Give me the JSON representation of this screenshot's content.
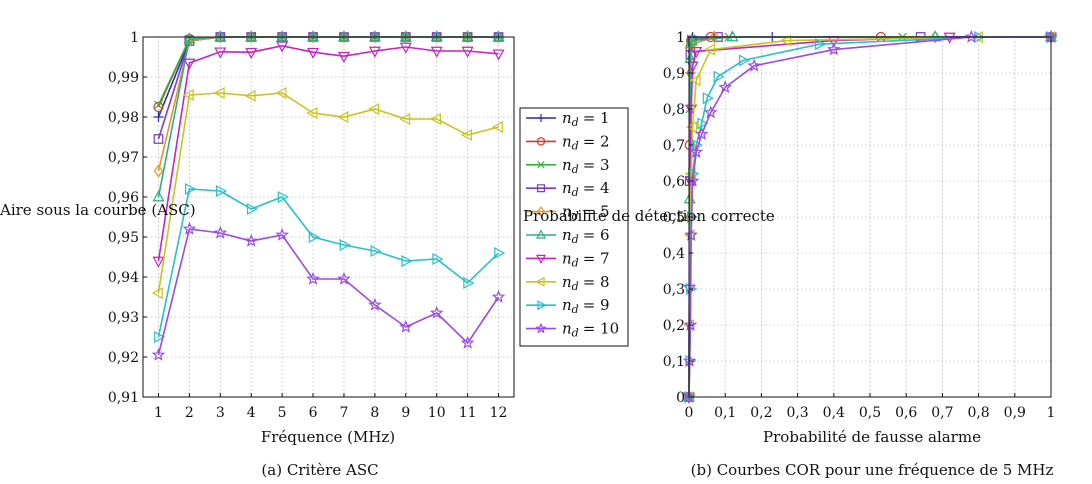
{
  "chart_data": [
    {
      "type": "line",
      "caption": "(a) Critère ASC",
      "xlabel": "Fréquence (MHz)",
      "ylabel": "Aire sous la courbe (ASC)",
      "xlim": [
        0.5,
        12.5
      ],
      "ylim": [
        0.91,
        1.0
      ],
      "x_ticks": [
        1,
        2,
        3,
        4,
        5,
        6,
        7,
        8,
        9,
        10,
        11,
        12
      ],
      "y_ticks": [
        0.91,
        0.92,
        0.93,
        0.94,
        0.95,
        0.96,
        0.97,
        0.98,
        0.99,
        1.0
      ],
      "y_tick_labels": [
        "0,91",
        "0,92",
        "0,93",
        "0,94",
        "0,95",
        "0,96",
        "0,97",
        "0,98",
        "0,99",
        "1"
      ],
      "grid": true,
      "legend": {
        "placement": "outside-right",
        "prefix": "n",
        "subscript": "d",
        "entries": [
          "= 1",
          "= 2",
          "= 3",
          "= 4",
          "= 5",
          "= 6",
          "= 7",
          "= 8",
          "= 9",
          "= 10"
        ]
      },
      "x": [
        1,
        2,
        3,
        4,
        5,
        6,
        7,
        8,
        9,
        10,
        11,
        12
      ],
      "series": [
        {
          "name": "n_d = 1",
          "color": "#2a2ac0",
          "marker": "plus",
          "values": [
            0.98,
            0.999,
            1.0,
            1.0,
            1.0,
            1.0,
            1.0,
            1.0,
            1.0,
            1.0,
            1.0,
            1.0
          ]
        },
        {
          "name": "n_d = 2",
          "color": "#d23b2c",
          "marker": "circle",
          "values": [
            0.9825,
            0.9995,
            1.0,
            1.0,
            1.0,
            1.0,
            1.0,
            1.0,
            1.0,
            1.0,
            1.0,
            1.0
          ]
        },
        {
          "name": "n_d = 3",
          "color": "#34b23c",
          "marker": "x",
          "values": [
            0.983,
            0.9995,
            1.0,
            1.0,
            1.0,
            1.0,
            1.0,
            1.0,
            1.0,
            1.0,
            1.0,
            1.0
          ]
        },
        {
          "name": "n_d = 4",
          "color": "#7a3cc8",
          "marker": "square",
          "values": [
            0.9745,
            0.999,
            1.0,
            1.0,
            1.0,
            1.0,
            1.0,
            1.0,
            1.0,
            1.0,
            1.0,
            1.0
          ]
        },
        {
          "name": "n_d = 5",
          "color": "#e0952c",
          "marker": "diamond",
          "values": [
            0.9665,
            0.999,
            1.0,
            1.0,
            1.0,
            1.0,
            1.0,
            1.0,
            1.0,
            1.0,
            1.0,
            1.0
          ]
        },
        {
          "name": "n_d = 6",
          "color": "#2fae86",
          "marker": "triangle-up",
          "values": [
            0.96,
            0.9995,
            1.0,
            1.0,
            1.0,
            1.0,
            1.0,
            1.0,
            1.0,
            1.0,
            1.0,
            1.0
          ]
        },
        {
          "name": "n_d = 7",
          "color": "#c424c4",
          "marker": "triangle-down",
          "values": [
            0.944,
            0.9935,
            0.9963,
            0.9962,
            0.9978,
            0.9962,
            0.9952,
            0.9965,
            0.9975,
            0.9965,
            0.9965,
            0.9958
          ]
        },
        {
          "name": "n_d = 8",
          "color": "#c8c41e",
          "marker": "triangle-left",
          "values": [
            0.936,
            0.9855,
            0.986,
            0.9853,
            0.986,
            0.981,
            0.98,
            0.982,
            0.9795,
            0.9795,
            0.9755,
            0.9775
          ]
        },
        {
          "name": "n_d = 9",
          "color": "#25c2c8",
          "marker": "triangle-right",
          "values": [
            0.925,
            0.962,
            0.9615,
            0.957,
            0.96,
            0.95,
            0.948,
            0.9465,
            0.944,
            0.9445,
            0.9385,
            0.946
          ]
        },
        {
          "name": "n_d = 10",
          "color": "#9a4ae6",
          "marker": "star",
          "values": [
            0.9205,
            0.952,
            0.951,
            0.949,
            0.9505,
            0.9395,
            0.9395,
            0.933,
            0.9275,
            0.931,
            0.9235,
            0.935
          ]
        }
      ]
    },
    {
      "type": "line",
      "caption": "(b) Courbes COR pour une fréquence de 5 MHz",
      "xlabel": "Probabilité de fausse alarme",
      "ylabel": "Probabilité de détection correcte",
      "xlim": [
        0,
        1
      ],
      "ylim": [
        0,
        1
      ],
      "x_ticks": [
        0,
        0.1,
        0.2,
        0.3,
        0.4,
        0.5,
        0.6,
        0.7,
        0.8,
        0.9,
        1
      ],
      "x_tick_labels": [
        "0",
        "0,1",
        "0,2",
        "0,3",
        "0,4",
        "0,5",
        "0,6",
        "0,7",
        "0,8",
        "0,9",
        "1"
      ],
      "y_ticks": [
        0,
        0.1,
        0.2,
        0.3,
        0.4,
        0.5,
        0.6,
        0.7,
        0.8,
        0.9,
        1
      ],
      "y_tick_labels": [
        "0",
        "0,1",
        "0,2",
        "0,3",
        "0,4",
        "0,5",
        "0,6",
        "0,7",
        "0,8",
        "0,9",
        "1"
      ],
      "grid": true,
      "series": [
        {
          "name": "n_d = 1",
          "color": "#2a2ac0",
          "marker": "plus",
          "x": [
            0,
            0.002,
            0.004,
            0.006,
            0.008,
            0.01,
            0.23,
            1
          ],
          "y": [
            0,
            0.5,
            0.9,
            0.98,
            0.995,
            1,
            1,
            1
          ]
        },
        {
          "name": "n_d = 2",
          "color": "#d23b2c",
          "marker": "circle",
          "x": [
            0,
            0.002,
            0.004,
            0.006,
            0.06,
            0.53,
            1
          ],
          "y": [
            0,
            0.7,
            0.97,
            0.99,
            1,
            1,
            1
          ]
        },
        {
          "name": "n_d = 3",
          "color": "#34b23c",
          "marker": "x",
          "x": [
            0,
            0.002,
            0.004,
            0.006,
            0.11,
            0.59,
            1
          ],
          "y": [
            0,
            0.8,
            0.98,
            0.995,
            1,
            1,
            1
          ]
        },
        {
          "name": "n_d = 4",
          "color": "#7a3cc8",
          "marker": "square",
          "x": [
            0,
            0.002,
            0.004,
            0.008,
            0.08,
            0.64,
            1
          ],
          "y": [
            0,
            0.6,
            0.95,
            0.99,
            1,
            1,
            1
          ]
        },
        {
          "name": "n_d = 5",
          "color": "#e0952c",
          "marker": "diamond",
          "x": [
            0,
            0.002,
            0.004,
            0.008,
            0.07,
            0.68,
            1
          ],
          "y": [
            0,
            0.5,
            0.9,
            0.98,
            1,
            1,
            1
          ]
        },
        {
          "name": "n_d = 6",
          "color": "#2fae86",
          "marker": "triangle-up",
          "x": [
            0,
            0.002,
            0.004,
            0.008,
            0.12,
            0.68,
            1
          ],
          "y": [
            0,
            0.55,
            0.94,
            0.99,
            1,
            1,
            1
          ]
        },
        {
          "name": "n_d = 7",
          "color": "#c424c4",
          "marker": "triangle-down",
          "x": [
            0,
            0.002,
            0.004,
            0.006,
            0.01,
            0.02,
            0.4,
            0.72,
            1
          ],
          "y": [
            0,
            0.3,
            0.6,
            0.8,
            0.92,
            0.96,
            0.99,
            1,
            1
          ]
        },
        {
          "name": "n_d = 8",
          "color": "#c8c41e",
          "marker": "triangle-left",
          "x": [
            0,
            0.002,
            0.004,
            0.006,
            0.01,
            0.02,
            0.06,
            0.27,
            0.8,
            1
          ],
          "y": [
            0,
            0.2,
            0.45,
            0.62,
            0.75,
            0.88,
            0.965,
            0.99,
            1,
            1
          ]
        },
        {
          "name": "n_d = 9",
          "color": "#25c2c8",
          "marker": "triangle-right",
          "x": [
            0,
            0.002,
            0.004,
            0.006,
            0.01,
            0.02,
            0.035,
            0.05,
            0.08,
            0.15,
            0.36,
            0.8,
            1
          ],
          "y": [
            0,
            0.1,
            0.3,
            0.5,
            0.62,
            0.7,
            0.76,
            0.83,
            0.89,
            0.935,
            0.98,
            1,
            1
          ]
        },
        {
          "name": "n_d = 10",
          "color": "#9a4ae6",
          "marker": "star",
          "x": [
            0,
            0.002,
            0.004,
            0.006,
            0.01,
            0.02,
            0.035,
            0.06,
            0.1,
            0.18,
            0.4,
            0.78,
            1
          ],
          "y": [
            0,
            0.1,
            0.2,
            0.45,
            0.6,
            0.68,
            0.73,
            0.79,
            0.86,
            0.92,
            0.965,
            1,
            1
          ]
        }
      ]
    }
  ]
}
